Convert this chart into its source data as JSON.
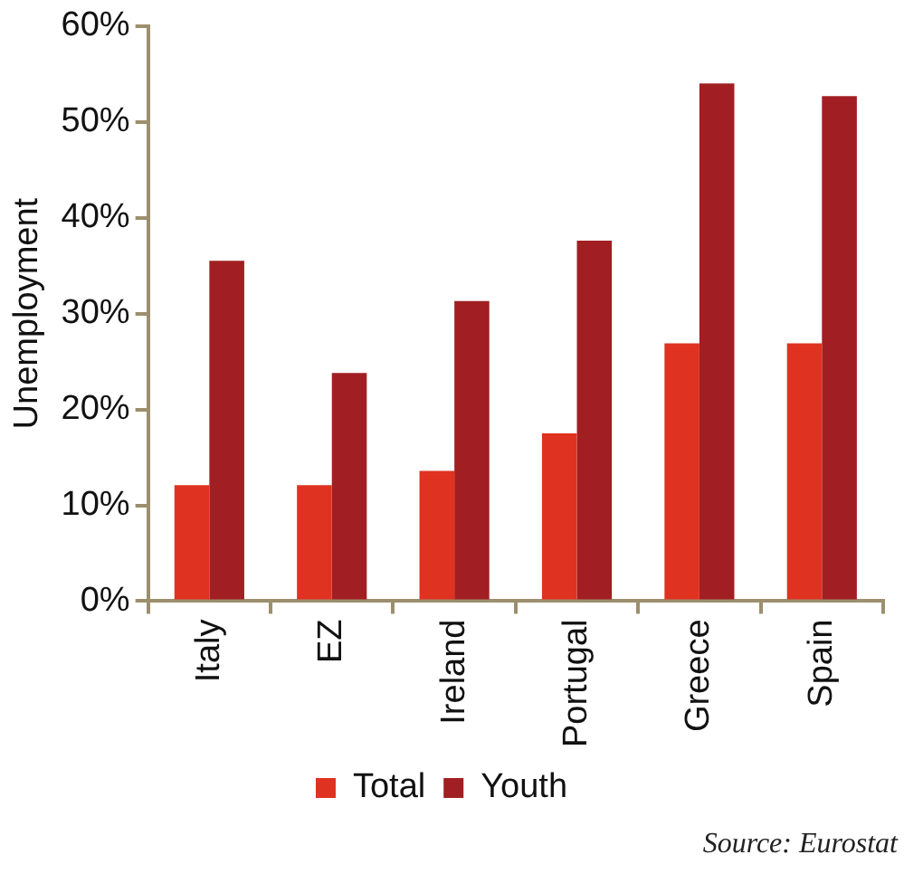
{
  "chart_data": {
    "type": "bar",
    "ylabel": "Unemployment",
    "categories": [
      "Italy",
      "EZ",
      "Ireland",
      "Portugal",
      "Greece",
      "Spain"
    ],
    "series": [
      {
        "name": "Total",
        "color": "#e03221",
        "values": [
          12.1,
          12.1,
          13.6,
          17.5,
          26.9,
          26.9
        ]
      },
      {
        "name": "Youth",
        "color": "#a11f22",
        "values": [
          35.5,
          23.8,
          31.3,
          37.6,
          54.0,
          52.7
        ]
      }
    ],
    "ylim": [
      0,
      60
    ],
    "yticks": [
      {
        "value": 0,
        "label": "0%"
      },
      {
        "value": 10,
        "label": "10%"
      },
      {
        "value": 20,
        "label": "20%"
      },
      {
        "value": 30,
        "label": "30%"
      },
      {
        "value": 40,
        "label": "40%"
      },
      {
        "value": 50,
        "label": "50%"
      },
      {
        "value": 60,
        "label": "60%"
      }
    ],
    "grid": false,
    "legend": "bottom",
    "annotations": [
      "Source: Eurostat"
    ]
  }
}
